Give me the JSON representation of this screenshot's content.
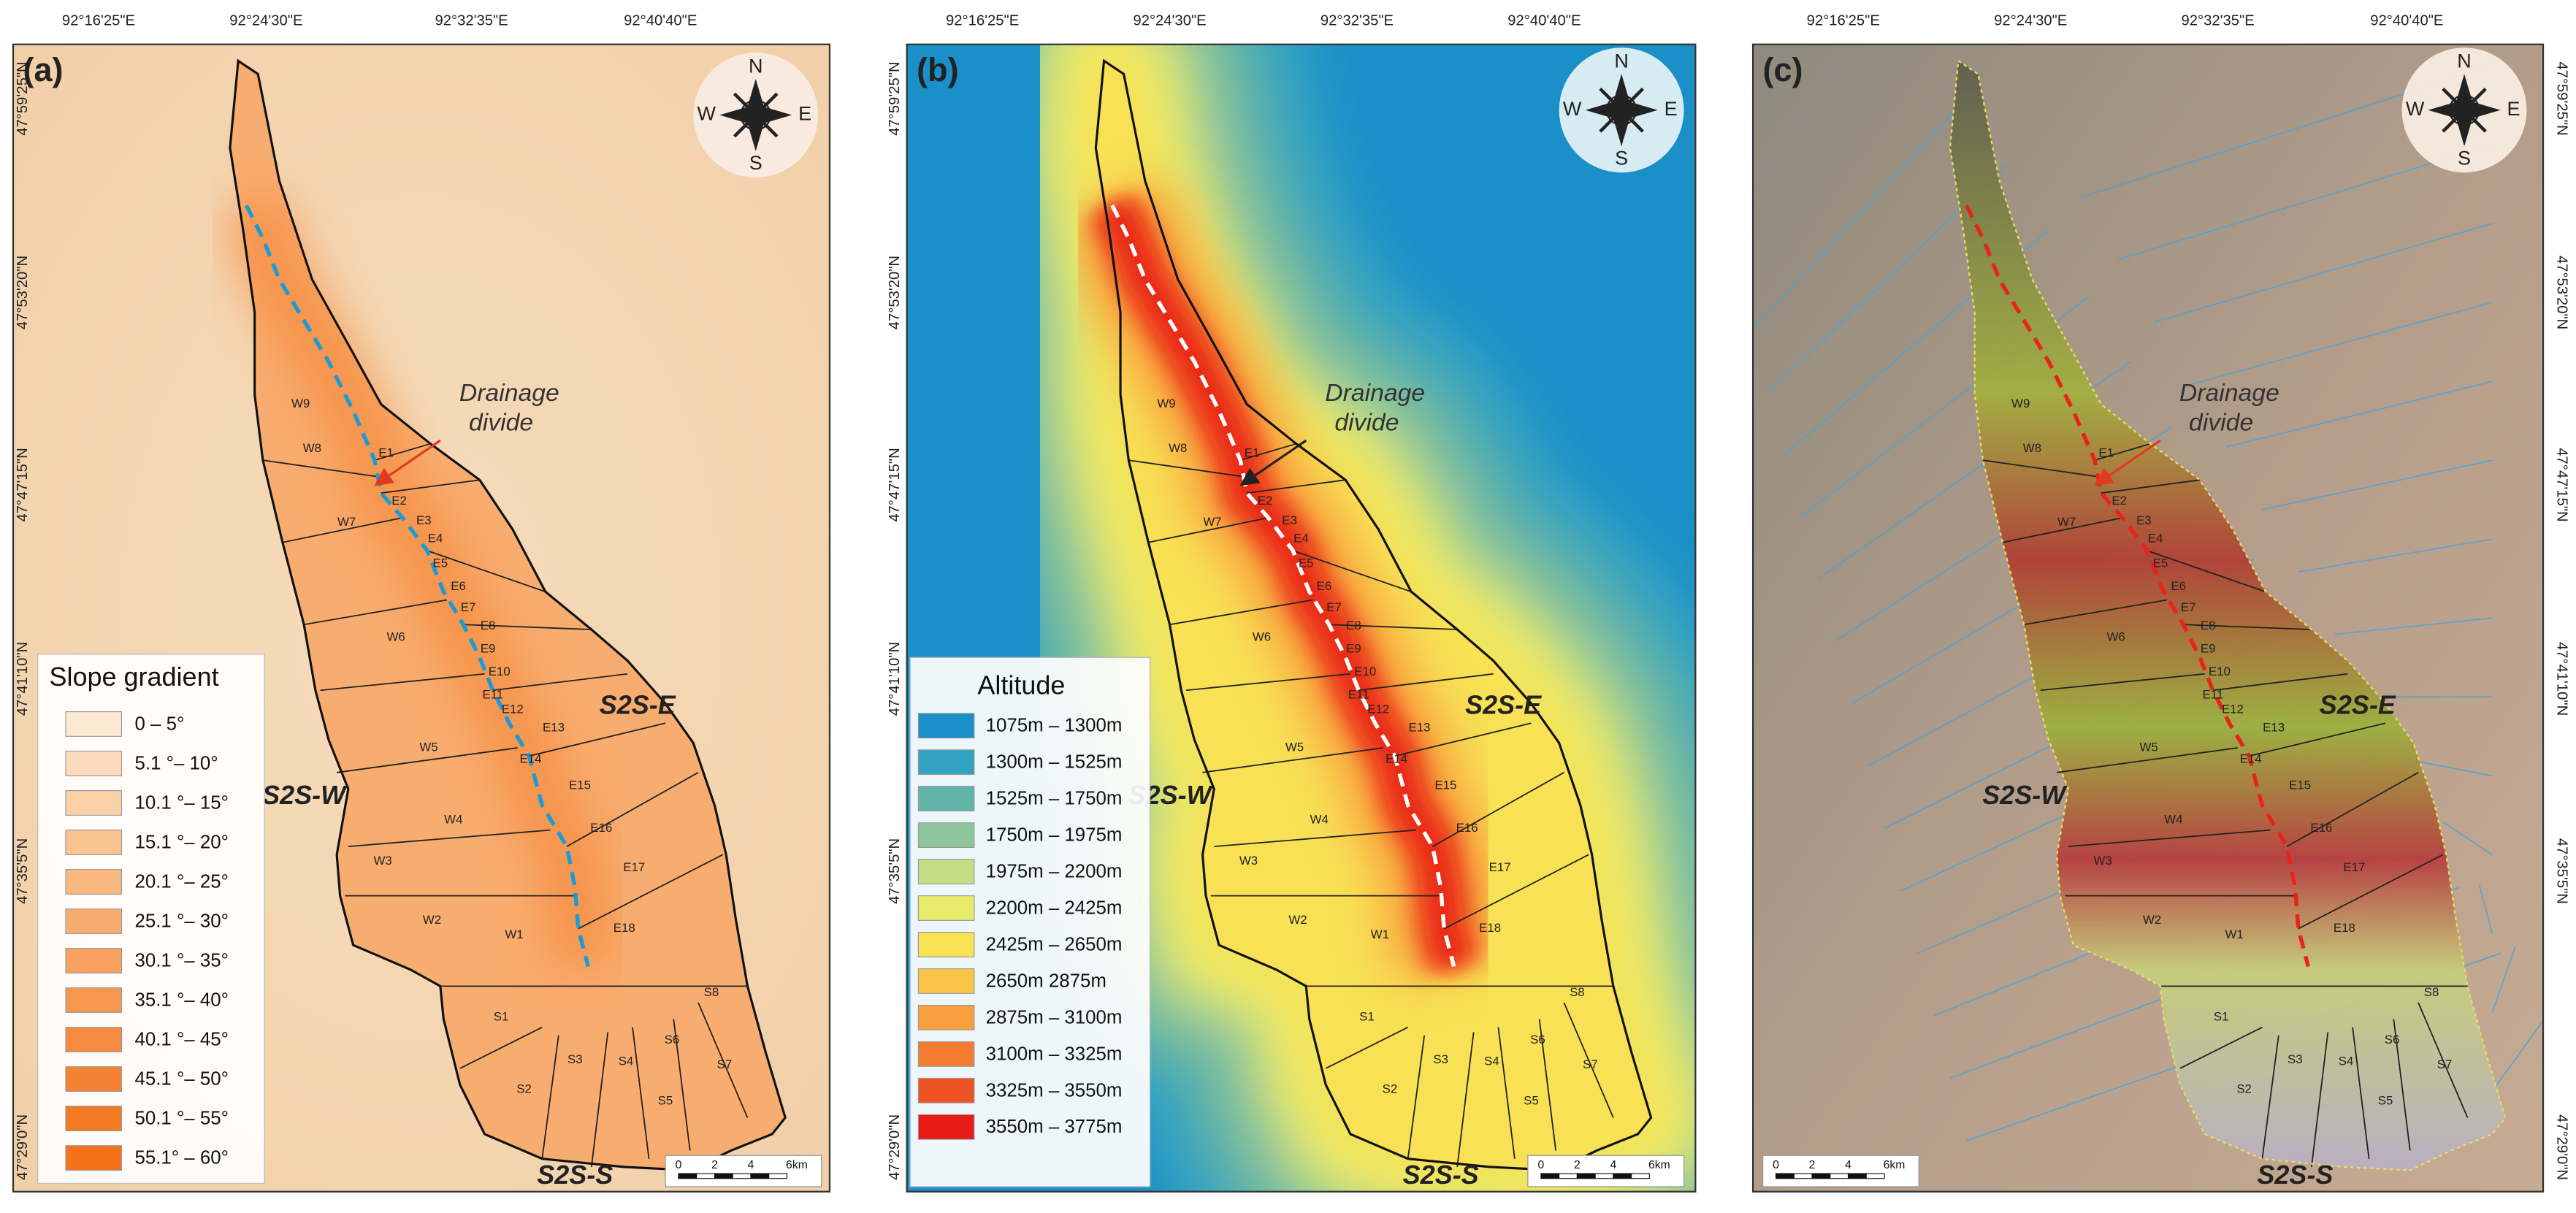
{
  "panels": [
    {
      "label": "(a)"
    },
    {
      "label": "(b)"
    },
    {
      "label": "(c)"
    }
  ],
  "lon_ticks": [
    "92°16'25\"E",
    "92°24'30\"E",
    "92°32'35\"E",
    "92°40'40\"E"
  ],
  "lat_ticks": [
    "47°59'25\"N",
    "47°53'20\"N",
    "47°47'15\"N",
    "47°41'10\"N",
    "47°35'5\"N",
    "47°29'0\"N"
  ],
  "compass": {
    "n": "N",
    "e": "E",
    "s": "S",
    "w": "W"
  },
  "scale_bar": [
    "0",
    "2",
    "4",
    "6km"
  ],
  "divide_label": [
    "Drainage",
    "divide"
  ],
  "regions": [
    "S2S-E",
    "S2S-W",
    "S2S-S"
  ],
  "basins": [
    "W1",
    "W2",
    "W3",
    "W4",
    "W5",
    "W6",
    "W7",
    "W8",
    "W9",
    "E1",
    "E2",
    "E3",
    "E4",
    "E5",
    "E6",
    "E7",
    "E8",
    "E9",
    "E10",
    "E11",
    "E12",
    "E13",
    "E14",
    "E15",
    "E16",
    "E17",
    "E18",
    "S1",
    "S2",
    "S3",
    "S4",
    "S5",
    "S6",
    "S7",
    "S8"
  ],
  "slope_legend": {
    "title": "Slope gradient",
    "items": [
      {
        "label": "0 – 5°",
        "color": "#fde9d3"
      },
      {
        "label": "5.1 °– 10°",
        "color": "#fcdcbc"
      },
      {
        "label": "10.1 °– 15°",
        "color": "#fbd0a6"
      },
      {
        "label": "15.1 °– 20°",
        "color": "#fac492"
      },
      {
        "label": "20.1 °– 25°",
        "color": "#f9b880"
      },
      {
        "label": "25.1 °– 30°",
        "color": "#f8ad70"
      },
      {
        "label": "30.1 °– 35°",
        "color": "#f7a260"
      },
      {
        "label": "35.1 °– 40°",
        "color": "#f69750"
      },
      {
        "label": "40.1 °– 45°",
        "color": "#f58c40"
      },
      {
        "label": "45.1 °– 50°",
        "color": "#f58232"
      },
      {
        "label": "50.1 °– 55°",
        "color": "#f57a24"
      },
      {
        "label": "55.1° – 60°",
        "color": "#f5721a"
      }
    ]
  },
  "altitude_legend": {
    "title": "Altitude",
    "items": [
      {
        "label": "1075m – 1300m",
        "color": "#1a8fc8"
      },
      {
        "label": "1300m – 1525m",
        "color": "#32a2c2"
      },
      {
        "label": "1525m – 1750m",
        "color": "#62b3a8"
      },
      {
        "label": "1750m – 1975m",
        "color": "#8fc59a"
      },
      {
        "label": "1975m – 2200m",
        "color": "#c4dc84"
      },
      {
        "label": "2200m – 2425m",
        "color": "#e8eb6a"
      },
      {
        "label": "2425m – 2650m",
        "color": "#f8e155"
      },
      {
        "label": "2650m   2875m",
        "color": "#fac448"
      },
      {
        "label": "2875m – 3100m",
        "color": "#f8a03e"
      },
      {
        "label": "3100m – 3325m",
        "color": "#f47c30"
      },
      {
        "label": "3325m – 3550m",
        "color": "#ef5224"
      },
      {
        "label": "3550m – 3775m",
        "color": "#e71a16"
      }
    ]
  }
}
